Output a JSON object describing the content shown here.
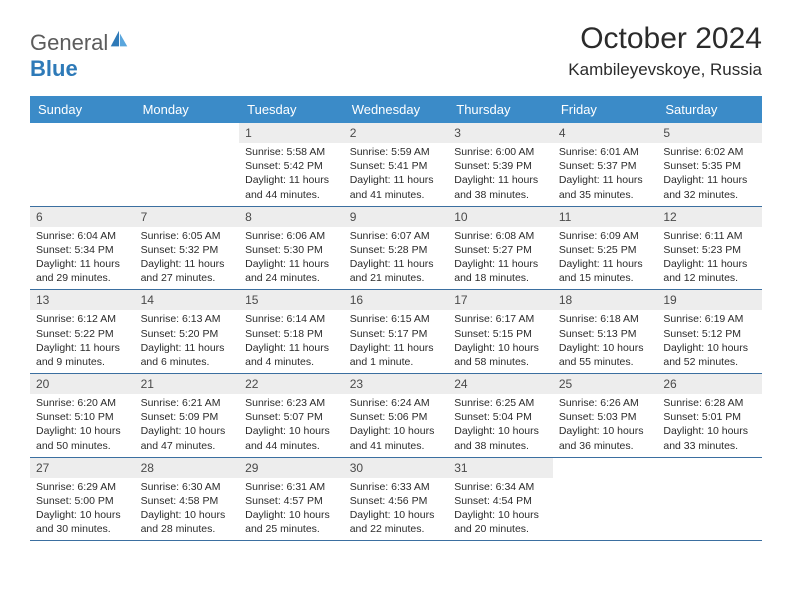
{
  "brand": {
    "general": "General",
    "blue": "Blue"
  },
  "title": "October 2024",
  "location": "Kambileyevskoye, Russia",
  "colors": {
    "header_bg": "#3b8bc8",
    "header_text": "#ffffff",
    "datebar_bg": "#ededed",
    "cell_border": "#3b6fa0",
    "body_bg": "#ffffff",
    "logo_accent": "#2e7ab8",
    "text": "#2b2b2b"
  },
  "typography": {
    "title_fontsize": 30,
    "location_fontsize": 17,
    "dayhead_fontsize": 13,
    "date_fontsize": 12,
    "body_fontsize": 10.5
  },
  "day_names": [
    "Sunday",
    "Monday",
    "Tuesday",
    "Wednesday",
    "Thursday",
    "Friday",
    "Saturday"
  ],
  "weeks": [
    [
      null,
      null,
      {
        "date": "1",
        "sunrise": "Sunrise: 5:58 AM",
        "sunset": "Sunset: 5:42 PM",
        "daylight": "Daylight: 11 hours and 44 minutes."
      },
      {
        "date": "2",
        "sunrise": "Sunrise: 5:59 AM",
        "sunset": "Sunset: 5:41 PM",
        "daylight": "Daylight: 11 hours and 41 minutes."
      },
      {
        "date": "3",
        "sunrise": "Sunrise: 6:00 AM",
        "sunset": "Sunset: 5:39 PM",
        "daylight": "Daylight: 11 hours and 38 minutes."
      },
      {
        "date": "4",
        "sunrise": "Sunrise: 6:01 AM",
        "sunset": "Sunset: 5:37 PM",
        "daylight": "Daylight: 11 hours and 35 minutes."
      },
      {
        "date": "5",
        "sunrise": "Sunrise: 6:02 AM",
        "sunset": "Sunset: 5:35 PM",
        "daylight": "Daylight: 11 hours and 32 minutes."
      }
    ],
    [
      {
        "date": "6",
        "sunrise": "Sunrise: 6:04 AM",
        "sunset": "Sunset: 5:34 PM",
        "daylight": "Daylight: 11 hours and 29 minutes."
      },
      {
        "date": "7",
        "sunrise": "Sunrise: 6:05 AM",
        "sunset": "Sunset: 5:32 PM",
        "daylight": "Daylight: 11 hours and 27 minutes."
      },
      {
        "date": "8",
        "sunrise": "Sunrise: 6:06 AM",
        "sunset": "Sunset: 5:30 PM",
        "daylight": "Daylight: 11 hours and 24 minutes."
      },
      {
        "date": "9",
        "sunrise": "Sunrise: 6:07 AM",
        "sunset": "Sunset: 5:28 PM",
        "daylight": "Daylight: 11 hours and 21 minutes."
      },
      {
        "date": "10",
        "sunrise": "Sunrise: 6:08 AM",
        "sunset": "Sunset: 5:27 PM",
        "daylight": "Daylight: 11 hours and 18 minutes."
      },
      {
        "date": "11",
        "sunrise": "Sunrise: 6:09 AM",
        "sunset": "Sunset: 5:25 PM",
        "daylight": "Daylight: 11 hours and 15 minutes."
      },
      {
        "date": "12",
        "sunrise": "Sunrise: 6:11 AM",
        "sunset": "Sunset: 5:23 PM",
        "daylight": "Daylight: 11 hours and 12 minutes."
      }
    ],
    [
      {
        "date": "13",
        "sunrise": "Sunrise: 6:12 AM",
        "sunset": "Sunset: 5:22 PM",
        "daylight": "Daylight: 11 hours and 9 minutes."
      },
      {
        "date": "14",
        "sunrise": "Sunrise: 6:13 AM",
        "sunset": "Sunset: 5:20 PM",
        "daylight": "Daylight: 11 hours and 6 minutes."
      },
      {
        "date": "15",
        "sunrise": "Sunrise: 6:14 AM",
        "sunset": "Sunset: 5:18 PM",
        "daylight": "Daylight: 11 hours and 4 minutes."
      },
      {
        "date": "16",
        "sunrise": "Sunrise: 6:15 AM",
        "sunset": "Sunset: 5:17 PM",
        "daylight": "Daylight: 11 hours and 1 minute."
      },
      {
        "date": "17",
        "sunrise": "Sunrise: 6:17 AM",
        "sunset": "Sunset: 5:15 PM",
        "daylight": "Daylight: 10 hours and 58 minutes."
      },
      {
        "date": "18",
        "sunrise": "Sunrise: 6:18 AM",
        "sunset": "Sunset: 5:13 PM",
        "daylight": "Daylight: 10 hours and 55 minutes."
      },
      {
        "date": "19",
        "sunrise": "Sunrise: 6:19 AM",
        "sunset": "Sunset: 5:12 PM",
        "daylight": "Daylight: 10 hours and 52 minutes."
      }
    ],
    [
      {
        "date": "20",
        "sunrise": "Sunrise: 6:20 AM",
        "sunset": "Sunset: 5:10 PM",
        "daylight": "Daylight: 10 hours and 50 minutes."
      },
      {
        "date": "21",
        "sunrise": "Sunrise: 6:21 AM",
        "sunset": "Sunset: 5:09 PM",
        "daylight": "Daylight: 10 hours and 47 minutes."
      },
      {
        "date": "22",
        "sunrise": "Sunrise: 6:23 AM",
        "sunset": "Sunset: 5:07 PM",
        "daylight": "Daylight: 10 hours and 44 minutes."
      },
      {
        "date": "23",
        "sunrise": "Sunrise: 6:24 AM",
        "sunset": "Sunset: 5:06 PM",
        "daylight": "Daylight: 10 hours and 41 minutes."
      },
      {
        "date": "24",
        "sunrise": "Sunrise: 6:25 AM",
        "sunset": "Sunset: 5:04 PM",
        "daylight": "Daylight: 10 hours and 38 minutes."
      },
      {
        "date": "25",
        "sunrise": "Sunrise: 6:26 AM",
        "sunset": "Sunset: 5:03 PM",
        "daylight": "Daylight: 10 hours and 36 minutes."
      },
      {
        "date": "26",
        "sunrise": "Sunrise: 6:28 AM",
        "sunset": "Sunset: 5:01 PM",
        "daylight": "Daylight: 10 hours and 33 minutes."
      }
    ],
    [
      {
        "date": "27",
        "sunrise": "Sunrise: 6:29 AM",
        "sunset": "Sunset: 5:00 PM",
        "daylight": "Daylight: 10 hours and 30 minutes."
      },
      {
        "date": "28",
        "sunrise": "Sunrise: 6:30 AM",
        "sunset": "Sunset: 4:58 PM",
        "daylight": "Daylight: 10 hours and 28 minutes."
      },
      {
        "date": "29",
        "sunrise": "Sunrise: 6:31 AM",
        "sunset": "Sunset: 4:57 PM",
        "daylight": "Daylight: 10 hours and 25 minutes."
      },
      {
        "date": "30",
        "sunrise": "Sunrise: 6:33 AM",
        "sunset": "Sunset: 4:56 PM",
        "daylight": "Daylight: 10 hours and 22 minutes."
      },
      {
        "date": "31",
        "sunrise": "Sunrise: 6:34 AM",
        "sunset": "Sunset: 4:54 PM",
        "daylight": "Daylight: 10 hours and 20 minutes."
      },
      null,
      null
    ]
  ]
}
